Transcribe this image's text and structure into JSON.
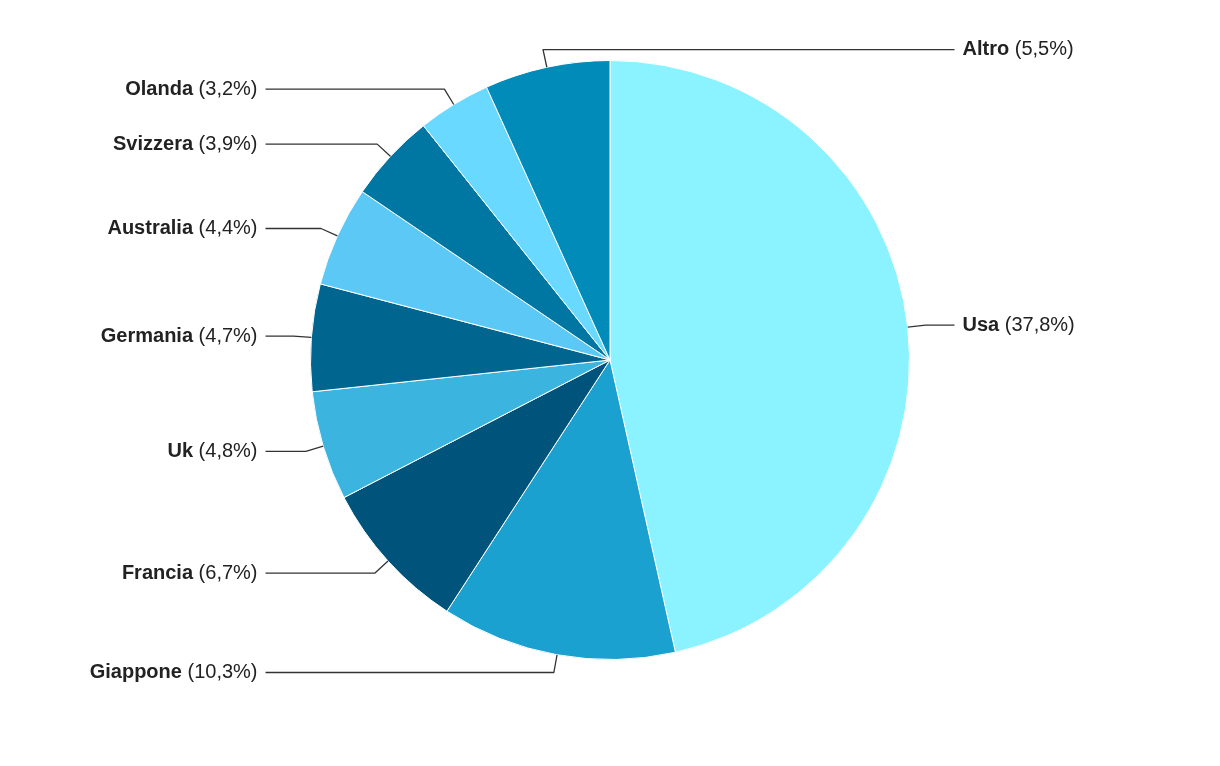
{
  "chart_data": {
    "type": "pie",
    "categories": [
      "Usa",
      "Giappone",
      "Francia",
      "Uk",
      "Germania",
      "Australia",
      "Svizzera",
      "Olanda",
      "Altro"
    ],
    "values": [
      37.8,
      10.3,
      6.7,
      4.8,
      4.7,
      4.4,
      3.9,
      3.2,
      5.5
    ],
    "colors": [
      "#8af3ff",
      "#1ba1cf",
      "#00547b",
      "#3cb4e0",
      "#006690",
      "#5bc8f5",
      "#0076a3",
      "#6ad9ff",
      "#008bb8"
    ],
    "value_labels": [
      "(37,8%)",
      "(10,3%)",
      "(6,7%)",
      "(4,8%)",
      "(4,7%)",
      "(4,4%)",
      "(3,9%)",
      "(3,2%)",
      "(5,5%)"
    ]
  }
}
